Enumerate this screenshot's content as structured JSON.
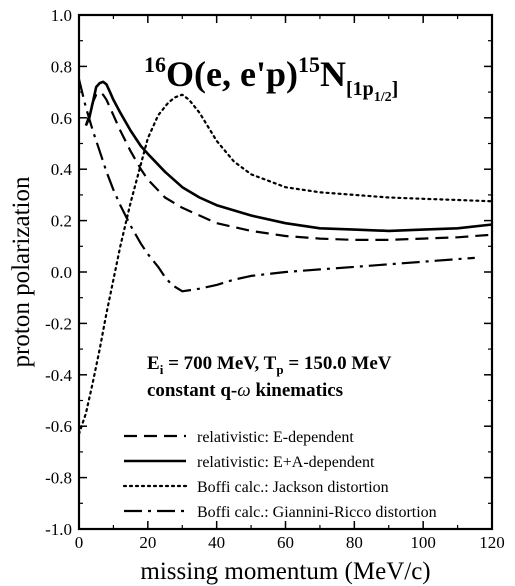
{
  "chart_data": {
    "type": "line",
    "title": {
      "pre": "16",
      "target": "O(e, e'p)",
      "residual_mass": "15",
      "residual": "N",
      "state_open": "[1p",
      "state_sub": "1/2",
      "state_close": "]"
    },
    "xlabel": "missing momentum (MeV/c)",
    "ylabel": "proton polarization",
    "xlim": [
      0,
      120
    ],
    "ylim": [
      -1.0,
      1.0
    ],
    "x_ticks": [
      "0",
      "20",
      "40",
      "60",
      "80",
      "100",
      "120"
    ],
    "y_ticks": [
      "1.0",
      "0.8",
      "0.6",
      "0.4",
      "0.2",
      "0.0",
      "-0.2",
      "-0.4",
      "-0.6",
      "-0.8",
      "-1.0"
    ],
    "grid": false,
    "legend_position": "bottom-right",
    "kinematics": {
      "line1": {
        "e": "E",
        "e_sub": "i",
        "e_val": " = 700 MeV, T",
        "t_sub": "p",
        "t_val": " = 150.0 MeV"
      },
      "line2": {
        "text": "constant q-",
        "omega": "ω",
        "rest": " kinematics"
      }
    },
    "series": [
      {
        "name": "relativistic: E-dependent",
        "dash": "dashed",
        "x": [
          2,
          3,
          4,
          5,
          6,
          7,
          8,
          10,
          12,
          15,
          18,
          20,
          25,
          30,
          35,
          40,
          50,
          60,
          70,
          80,
          90,
          100,
          110,
          120
        ],
        "y": [
          0.57,
          0.61,
          0.66,
          0.69,
          0.7,
          0.69,
          0.67,
          0.61,
          0.55,
          0.47,
          0.4,
          0.36,
          0.29,
          0.25,
          0.22,
          0.19,
          0.16,
          0.14,
          0.13,
          0.125,
          0.125,
          0.13,
          0.135,
          0.145
        ]
      },
      {
        "name": "relativistic: E+A-dependent",
        "dash": "solid",
        "x": [
          2,
          3,
          4,
          5,
          6,
          7,
          8,
          9,
          10,
          12,
          15,
          18,
          20,
          25,
          30,
          35,
          40,
          50,
          60,
          70,
          80,
          90,
          100,
          110,
          120
        ],
        "y": [
          0.57,
          0.6,
          0.66,
          0.72,
          0.735,
          0.74,
          0.73,
          0.7,
          0.67,
          0.62,
          0.55,
          0.49,
          0.46,
          0.39,
          0.33,
          0.29,
          0.26,
          0.22,
          0.19,
          0.17,
          0.165,
          0.16,
          0.165,
          0.17,
          0.185
        ]
      },
      {
        "name": "Boffi calc.: Jackson distortion",
        "dash": "dotted",
        "x": [
          0,
          2,
          4,
          6,
          8,
          10,
          12,
          15,
          18,
          20,
          23,
          26,
          28,
          30,
          32,
          35,
          40,
          45,
          50,
          60,
          70,
          80,
          90,
          100,
          110,
          120
        ],
        "y": [
          -0.63,
          -0.55,
          -0.43,
          -0.3,
          -0.16,
          -0.03,
          0.1,
          0.27,
          0.42,
          0.52,
          0.61,
          0.66,
          0.68,
          0.69,
          0.67,
          0.62,
          0.51,
          0.43,
          0.38,
          0.33,
          0.31,
          0.3,
          0.29,
          0.285,
          0.28,
          0.275
        ]
      },
      {
        "name": "Boffi calc.: Giannini-Ricco distortion",
        "dash": "dashdot",
        "x": [
          0,
          2,
          4,
          6,
          8,
          10,
          12,
          15,
          18,
          20,
          23,
          25,
          27,
          30,
          35,
          40,
          45,
          50,
          60,
          70,
          80,
          90,
          100,
          110,
          115
        ],
        "y": [
          0.75,
          0.64,
          0.55,
          0.47,
          0.39,
          0.32,
          0.26,
          0.18,
          0.11,
          0.07,
          0.02,
          -0.02,
          -0.05,
          -0.075,
          -0.065,
          -0.05,
          -0.03,
          -0.015,
          0.0,
          0.01,
          0.02,
          0.03,
          0.04,
          0.05,
          0.055
        ]
      }
    ]
  }
}
